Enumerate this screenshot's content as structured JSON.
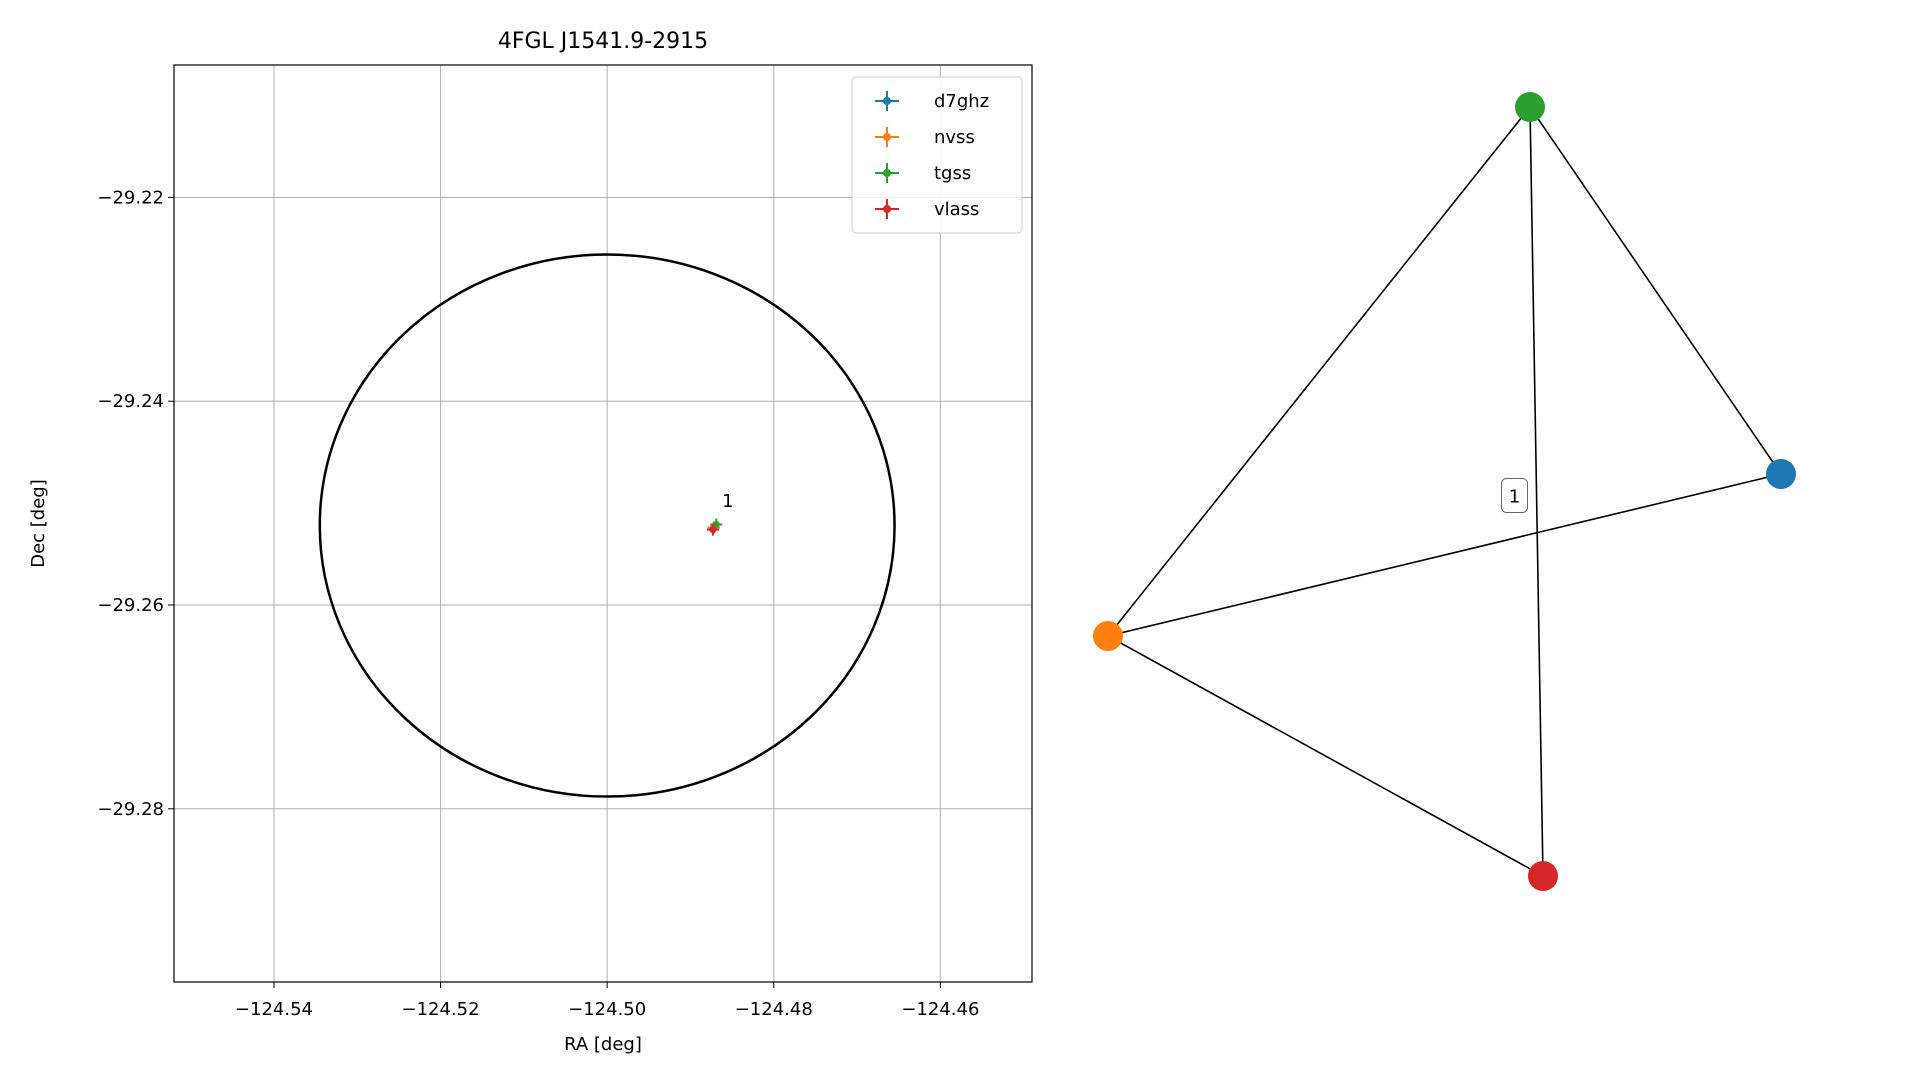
{
  "chart_data": [
    {
      "type": "scatter",
      "title": "4FGL J1541.9-2915",
      "x_label": "RA [deg]",
      "y_label": "Dec [deg]",
      "xlim": [
        -124.552,
        -124.449
      ],
      "ylim": [
        -29.297,
        -29.207
      ],
      "xticks": [
        {
          "value": -124.54,
          "label": "−124.54"
        },
        {
          "value": -124.52,
          "label": "−124.52"
        },
        {
          "value": -124.5,
          "label": "−124.50"
        },
        {
          "value": -124.48,
          "label": "−124.48"
        },
        {
          "value": -124.46,
          "label": "−124.46"
        }
      ],
      "yticks": [
        {
          "value": -29.22,
          "label": "−29.22"
        },
        {
          "value": -29.24,
          "label": "−29.24"
        },
        {
          "value": -29.26,
          "label": "−29.26"
        },
        {
          "value": -29.28,
          "label": "−29.28"
        }
      ],
      "grid": true,
      "legend": "upper right",
      "ellipse": {
        "center": [
          -124.5,
          -29.2522
        ],
        "radius": [
          0.0345,
          0.0266
        ],
        "color": "#000000"
      },
      "series": [
        {
          "name": "d7ghz",
          "color": "#1f77b4",
          "x": [
            -124.4872
          ],
          "values": [
            -29.2524
          ]
        },
        {
          "name": "nvss",
          "color": "#ff7f0e",
          "x": [
            -124.4872
          ],
          "values": [
            -29.2524
          ]
        },
        {
          "name": "tgss",
          "color": "#2ca02c",
          "x": [
            -124.4869
          ],
          "values": [
            -29.2521
          ]
        },
        {
          "name": "vlass",
          "color": "#d62728",
          "x": [
            -124.4873
          ],
          "values": [
            -29.2526
          ]
        }
      ],
      "annotations": [
        {
          "text": "1",
          "x": -124.4862,
          "y": -29.2504
        }
      ]
    },
    {
      "type": "graph",
      "nodes": [
        {
          "color": "#1f77b4"
        },
        {
          "color": "#ff7f0e"
        },
        {
          "color": "#2ca02c"
        },
        {
          "color": "#d62728"
        }
      ],
      "edges": [
        [
          1,
          2
        ],
        [
          2,
          0
        ],
        [
          1,
          0
        ],
        [
          2,
          3
        ],
        [
          1,
          3
        ]
      ],
      "edge_labels": [
        {
          "edge": 3,
          "label": "1"
        }
      ]
    }
  ]
}
